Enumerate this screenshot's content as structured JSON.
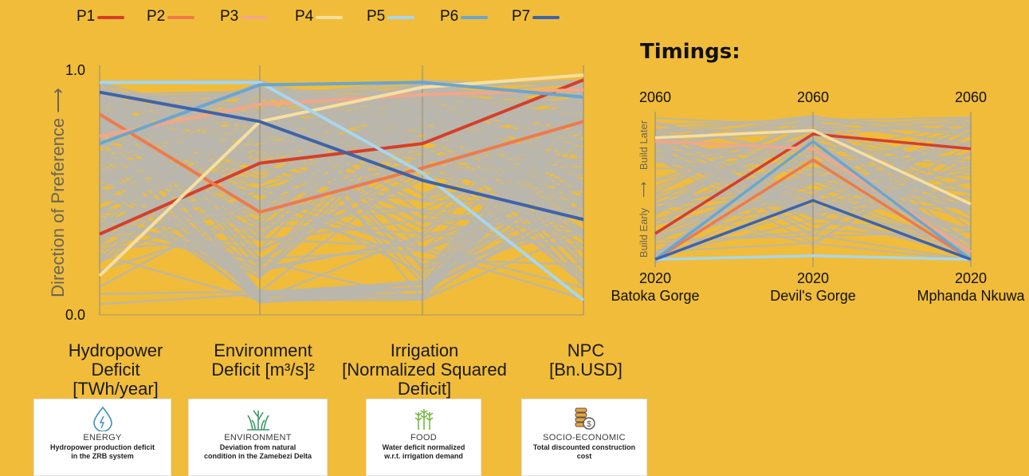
{
  "legend": [
    {
      "label": "P1",
      "color": "#D63E2A"
    },
    {
      "label": "P2",
      "color": "#EE7A4A"
    },
    {
      "label": "P3",
      "color": "#F4A688"
    },
    {
      "label": "P4",
      "color": "#F7DFA0"
    },
    {
      "label": "P5",
      "color": "#A8D6EC"
    },
    {
      "label": "P6",
      "color": "#6AA6CE"
    },
    {
      "label": "P7",
      "color": "#3E63A8"
    }
  ],
  "chart_data": [
    {
      "type": "parallel-coordinates",
      "ylabel": "Direction of Preference  ⟶",
      "ylim": [
        0.0,
        1.0
      ],
      "y_tick_labels": [
        "0.0",
        "1.0"
      ],
      "axes": [
        {
          "line1": "Hydropower",
          "line2": "Deficit [TWh/year]"
        },
        {
          "line1": "Environment",
          "line2": "Deficit [m³/s]²"
        },
        {
          "line1": "Irrigation",
          "line2": "[Normalized Squared",
          "line3": "Deficit]"
        },
        {
          "line1": "NPC",
          "line2": "[Bn.USD]"
        }
      ],
      "series": [
        {
          "name": "P1",
          "values": [
            0.33,
            0.62,
            0.7,
            0.96
          ]
        },
        {
          "name": "P2",
          "values": [
            0.82,
            0.42,
            0.6,
            0.79
          ]
        },
        {
          "name": "P3",
          "values": [
            0.73,
            0.86,
            0.9,
            0.92
          ]
        },
        {
          "name": "P4",
          "values": [
            0.16,
            0.79,
            0.93,
            0.98
          ]
        },
        {
          "name": "P5",
          "values": [
            0.95,
            0.95,
            0.58,
            0.06
          ]
        },
        {
          "name": "P6",
          "values": [
            0.7,
            0.94,
            0.95,
            0.89
          ]
        },
        {
          "name": "P7",
          "values": [
            0.91,
            0.79,
            0.55,
            0.39
          ]
        }
      ]
    },
    {
      "type": "parallel-coordinates",
      "title": "Timings:",
      "ylabel_bottom": "Build Early",
      "ylabel_top": "Build Later",
      "ylim": [
        2020,
        2060
      ],
      "axes": [
        {
          "name": "Batoka Gorge",
          "top": "2060",
          "bottom": "2020"
        },
        {
          "name": "Devil's Gorge",
          "top": "2060",
          "bottom": "2020"
        },
        {
          "name": "Mphanda Nkuwa",
          "top": "2060",
          "bottom": "2020"
        }
      ],
      "series": [
        {
          "name": "P1",
          "values": [
            2028,
            2055,
            2051
          ]
        },
        {
          "name": "P2",
          "values": [
            2021,
            2048,
            2021
          ]
        },
        {
          "name": "P3",
          "values": [
            2053,
            2051,
            2023
          ]
        },
        {
          "name": "P4",
          "values": [
            2054,
            2056,
            2036
          ]
        },
        {
          "name": "P5",
          "values": [
            2021,
            2022,
            2021
          ]
        },
        {
          "name": "P6",
          "values": [
            2021,
            2053,
            2021
          ]
        },
        {
          "name": "P7",
          "values": [
            2021,
            2037,
            2021
          ]
        }
      ]
    }
  ],
  "cards": [
    {
      "title": "ENERGY",
      "desc1": "Hydropower production deficit",
      "desc2": "in the ZRB system",
      "icon": "water-drop-icon"
    },
    {
      "title": "ENVIRONMENT",
      "desc1": "Deviation from natural",
      "desc2": "condition in the Zamebezi Delta",
      "icon": "reeds-icon"
    },
    {
      "title": "FOOD",
      "desc1": "Water deficit normalized",
      "desc2": "w.r.t. irrigation demand",
      "icon": "wheat-icon"
    },
    {
      "title": "SOCIO-ECONOMIC",
      "desc1": "Total discounted construction",
      "desc2": "cost",
      "icon": "coins-icon"
    }
  ],
  "colors": {
    "background": "#F0BC3A",
    "background_lines": "#B9B6AE",
    "axis": "#8f8a7a"
  }
}
